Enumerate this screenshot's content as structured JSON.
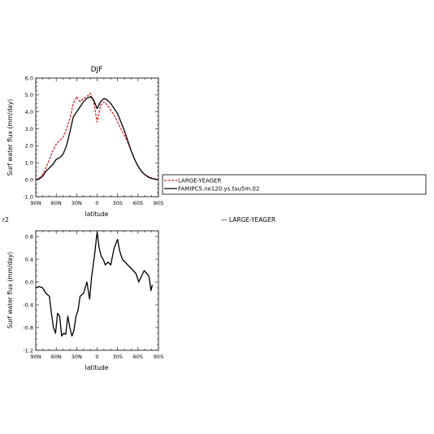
{
  "chart_data": [
    {
      "type": "line",
      "title": "DJF",
      "xlabel": "latitude",
      "ylabel": "Surf water flux (mm/day)",
      "xlim": [
        90,
        -90
      ],
      "ylim": [
        -1.0,
        6.0
      ],
      "x_tick_values": [
        90,
        60,
        30,
        0,
        -30,
        -60,
        -90
      ],
      "x_tick_labels": [
        "90N",
        "60N",
        "30N",
        "0",
        "30S",
        "60S",
        "90S"
      ],
      "y_tick_values": [
        -1,
        0,
        1,
        2,
        3,
        4,
        5,
        6
      ],
      "y_tick_labels": [
        "-1.0",
        "0.0",
        "1.0",
        "2.0",
        "3.0",
        "4.0",
        "5.0",
        "6.0"
      ],
      "legend_position": "right",
      "series": [
        {
          "name": "LARGE-YEAGER",
          "color": "#e0262a",
          "dash": "dashed",
          "x": [
            90,
            85,
            80,
            75,
            70,
            65,
            60,
            55,
            50,
            45,
            40,
            35,
            30,
            25,
            20,
            15,
            10,
            5,
            0,
            -5,
            -10,
            -15,
            -20,
            -25,
            -30,
            -35,
            -40,
            -45,
            -50,
            -55,
            -60,
            -65,
            -70,
            -75,
            -80,
            -85,
            -90
          ],
          "values": [
            0.0,
            0.1,
            0.3,
            0.7,
            1.2,
            1.7,
            2.1,
            2.3,
            2.5,
            3.0,
            3.6,
            4.5,
            4.9,
            4.6,
            4.8,
            4.9,
            5.1,
            4.6,
            3.4,
            4.4,
            4.6,
            4.4,
            4.1,
            3.8,
            3.4,
            3.0,
            2.6,
            2.2,
            1.7,
            1.2,
            0.8,
            0.5,
            0.3,
            0.2,
            0.1,
            0.05,
            0.0
          ]
        },
        {
          "name": "FAMIPC5.ne120.ys.tau5m.02",
          "color": "#000000",
          "dash": "solid",
          "x": [
            90,
            85,
            80,
            75,
            70,
            65,
            60,
            55,
            50,
            45,
            40,
            35,
            30,
            25,
            20,
            15,
            10,
            5,
            0,
            -5,
            -10,
            -15,
            -20,
            -25,
            -30,
            -35,
            -40,
            -45,
            -50,
            -55,
            -60,
            -65,
            -70,
            -75,
            -80,
            -85,
            -90
          ],
          "values": [
            0.0,
            0.05,
            0.2,
            0.5,
            0.7,
            0.9,
            1.2,
            1.3,
            1.5,
            2.0,
            2.8,
            3.7,
            4.0,
            4.3,
            4.6,
            4.8,
            4.9,
            4.7,
            4.2,
            4.6,
            4.8,
            4.7,
            4.5,
            4.2,
            3.9,
            3.4,
            2.9,
            2.3,
            1.7,
            1.2,
            0.8,
            0.5,
            0.3,
            0.15,
            0.08,
            0.03,
            0.0
          ]
        }
      ]
    },
    {
      "type": "line",
      "title": "",
      "xlabel": "latitude",
      "ylabel": "Surf water flux (mm/day)",
      "xlim": [
        90,
        -90
      ],
      "ylim": [
        -1.2,
        0.9
      ],
      "x_tick_values": [
        90,
        60,
        30,
        0,
        -30,
        -60,
        -90
      ],
      "x_tick_labels": [
        "90N",
        "60N",
        "30N",
        "0",
        "30S",
        "60S",
        "90S"
      ],
      "y_tick_values": [
        -1.2,
        -0.8,
        -0.4,
        0.0,
        0.4,
        0.8
      ],
      "y_tick_labels": [
        "-1.2",
        "-0.8",
        "-0.4",
        "0.0",
        "0.4",
        "0.8"
      ],
      "series": [
        {
          "name": "",
          "color": "#000000",
          "dash": "solid",
          "x": [
            90,
            85,
            80,
            75,
            70,
            67,
            64,
            61,
            58,
            55,
            52,
            49,
            46,
            43,
            40,
            37,
            34,
            31,
            28,
            25,
            20,
            15,
            11,
            8,
            4,
            0,
            -3,
            -6,
            -9,
            -12,
            -16,
            -20,
            -25,
            -30,
            -33,
            -37,
            -41,
            -45,
            -49,
            -53,
            -57,
            -61,
            -65,
            -69,
            -73,
            -76,
            -79,
            -81
          ],
          "values": [
            -0.1,
            -0.08,
            -0.1,
            -0.2,
            -0.25,
            -0.55,
            -0.8,
            -0.9,
            -0.55,
            -0.6,
            -0.95,
            -0.9,
            -0.92,
            -0.6,
            -0.8,
            -0.95,
            -0.85,
            -0.6,
            -0.5,
            -0.25,
            -0.2,
            0.0,
            -0.3,
            0.1,
            0.45,
            0.88,
            0.6,
            0.45,
            0.4,
            0.3,
            0.35,
            0.3,
            0.6,
            0.75,
            0.55,
            0.4,
            0.35,
            0.3,
            0.25,
            0.2,
            0.15,
            0.0,
            0.1,
            0.2,
            0.15,
            0.1,
            -0.15,
            -0.05
          ]
        }
      ]
    }
  ],
  "page": {
    "stray_label": "r2",
    "orphan_legend": "— LARGE-YEAGER"
  }
}
